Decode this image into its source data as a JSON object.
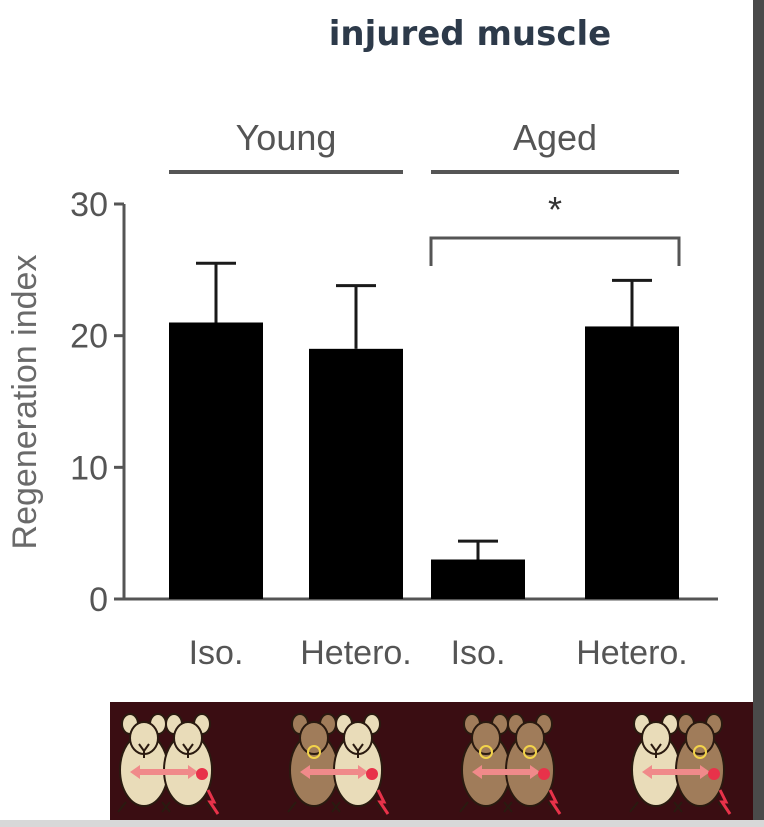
{
  "title": "injured muscle",
  "chart_data": {
    "type": "bar",
    "title": "injured muscle",
    "ylabel": "Regeneration index",
    "xlabel": "",
    "ylim": [
      0,
      30
    ],
    "yticks": [
      0,
      10,
      20,
      30
    ],
    "categories": [
      "Iso.",
      "Hetero.",
      "Iso.",
      "Hetero."
    ],
    "values": [
      21,
      19,
      3,
      20.7
    ],
    "error_upper": [
      25.5,
      23.8,
      4.4,
      24.2
    ],
    "groups": [
      {
        "label": "Young",
        "categories": [
          0,
          1
        ]
      },
      {
        "label": "Aged",
        "categories": [
          2,
          3
        ]
      }
    ],
    "significance": {
      "label": "*",
      "between": [
        2,
        3
      ]
    },
    "bar_color": "#000000",
    "grid": false
  },
  "mice_strip": {
    "background": "#3a0d12",
    "pairs": [
      {
        "left": "Y",
        "right": "Y",
        "left_color": "#e9dcb9",
        "right_color": "#e9dcb9"
      },
      {
        "left": "O",
        "right": "Y",
        "left_color": "#a07c5a",
        "right_color": "#e9dcb9"
      },
      {
        "left": "O",
        "right": "O",
        "left_color": "#a07c5a",
        "right_color": "#a07c5a"
      },
      {
        "left": "Y",
        "right": "O",
        "left_color": "#e9dcb9",
        "right_color": "#a07c5a"
      }
    ]
  }
}
